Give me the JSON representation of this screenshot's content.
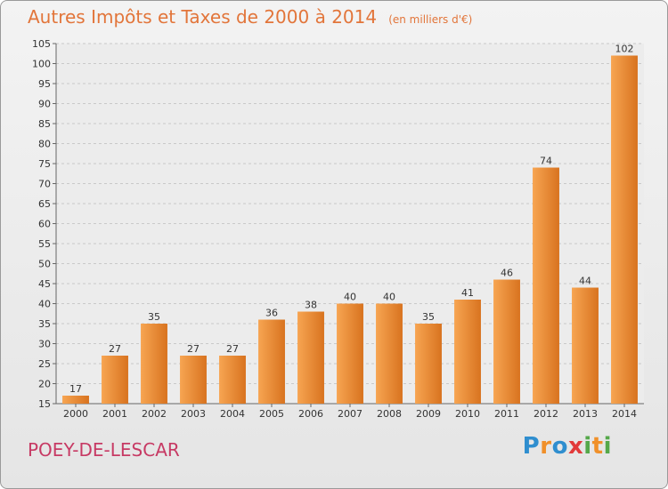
{
  "header": {
    "title": "Autres Impôts et Taxes de 2000 à 2014",
    "unit": "(en milliers d'€)"
  },
  "footer": {
    "commune": "POEY-DE-LESCAR",
    "brand": "Proxiti",
    "brand_letters": [
      {
        "ch": "P",
        "color": "#2f8ecf"
      },
      {
        "ch": "r",
        "color": "#f0902a"
      },
      {
        "ch": "o",
        "color": "#2f8ecf"
      },
      {
        "ch": "x",
        "color": "#e23a3a"
      },
      {
        "ch": "i",
        "color": "#55a84a"
      },
      {
        "ch": "t",
        "color": "#f0902a"
      },
      {
        "ch": "i",
        "color": "#55a84a"
      }
    ]
  },
  "colors": {
    "bar_light": "#f7a552",
    "bar_dark": "#d8731f",
    "title": "#e2753a",
    "commune": "#c73a64"
  },
  "chart_data": {
    "type": "bar",
    "categories": [
      "2000",
      "2001",
      "2002",
      "2003",
      "2004",
      "2005",
      "2006",
      "2007",
      "2008",
      "2009",
      "2010",
      "2011",
      "2012",
      "2013",
      "2014"
    ],
    "values": [
      17,
      27,
      35,
      27,
      27,
      36,
      38,
      40,
      40,
      35,
      41,
      46,
      74,
      44,
      102
    ],
    "ylim": [
      15,
      105
    ],
    "yticks": [
      15,
      20,
      25,
      30,
      35,
      40,
      45,
      50,
      55,
      60,
      65,
      70,
      75,
      80,
      85,
      90,
      95,
      100,
      105
    ],
    "grid": true,
    "legend": "none"
  }
}
